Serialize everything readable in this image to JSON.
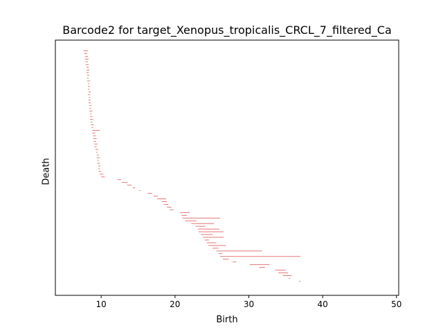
{
  "chart_data": {
    "type": "barcode",
    "title": "Barcode2 for target_Xenopus_tropicalis_CRCL_7_filtered_Ca",
    "xlabel": "Birth",
    "ylabel": "Death",
    "xlim": [
      3.8,
      50.3
    ],
    "xticks": [
      10,
      20,
      30,
      40,
      50
    ],
    "xtick_labels": [
      "10",
      "20",
      "30",
      "40",
      "50"
    ],
    "y_ticks_shown": false,
    "grid": false,
    "bar_color": "#e06666",
    "bars": [
      {
        "start": 7.6,
        "end": 8.2
      },
      {
        "start": 7.7,
        "end": 8.1
      },
      {
        "start": 7.8,
        "end": 8.2
      },
      {
        "start": 7.8,
        "end": 8.3
      },
      {
        "start": 7.9,
        "end": 8.2
      },
      {
        "start": 7.9,
        "end": 8.3
      },
      {
        "start": 8.0,
        "end": 8.3
      },
      {
        "start": 8.0,
        "end": 8.4
      },
      {
        "start": 8.0,
        "end": 8.3
      },
      {
        "start": 8.1,
        "end": 8.4
      },
      {
        "start": 8.1,
        "end": 8.3
      },
      {
        "start": 8.1,
        "end": 8.5
      },
      {
        "start": 8.2,
        "end": 8.4
      },
      {
        "start": 8.2,
        "end": 8.5
      },
      {
        "start": 8.2,
        "end": 8.4
      },
      {
        "start": 8.3,
        "end": 8.6
      },
      {
        "start": 8.2,
        "end": 8.5
      },
      {
        "start": 8.3,
        "end": 8.5
      },
      {
        "start": 8.3,
        "end": 8.6
      },
      {
        "start": 8.3,
        "end": 8.6
      },
      {
        "start": 8.4,
        "end": 8.7
      },
      {
        "start": 8.4,
        "end": 8.6
      },
      {
        "start": 8.4,
        "end": 8.8
      },
      {
        "start": 8.5,
        "end": 8.7
      },
      {
        "start": 8.5,
        "end": 8.8
      },
      {
        "start": 8.5,
        "end": 8.9
      },
      {
        "start": 8.6,
        "end": 8.8
      },
      {
        "start": 8.6,
        "end": 9.0
      },
      {
        "start": 8.7,
        "end": 8.9
      },
      {
        "start": 8.8,
        "end": 9.8
      },
      {
        "start": 8.8,
        "end": 9.2
      },
      {
        "start": 8.9,
        "end": 9.3
      },
      {
        "start": 8.9,
        "end": 9.4
      },
      {
        "start": 9.0,
        "end": 9.3
      },
      {
        "start": 9.1,
        "end": 9.5
      },
      {
        "start": 9.1,
        "end": 9.4
      },
      {
        "start": 9.2,
        "end": 9.6
      },
      {
        "start": 9.3,
        "end": 9.5
      },
      {
        "start": 9.4,
        "end": 9.7
      },
      {
        "start": 9.4,
        "end": 9.8
      },
      {
        "start": 9.5,
        "end": 9.7
      },
      {
        "start": 9.5,
        "end": 9.8
      },
      {
        "start": 9.6,
        "end": 9.9
      },
      {
        "start": 9.6,
        "end": 9.8
      },
      {
        "start": 9.7,
        "end": 10.0
      },
      {
        "start": 9.8,
        "end": 10.3
      },
      {
        "start": 10.0,
        "end": 10.5
      },
      {
        "start": 12.2,
        "end": 12.7
      },
      {
        "start": 12.8,
        "end": 13.6
      },
      {
        "start": 13.5,
        "end": 14.1
      },
      {
        "start": 14.3,
        "end": 14.6
      },
      {
        "start": 15.1,
        "end": 15.3
      },
      {
        "start": 16.3,
        "end": 16.9
      },
      {
        "start": 17.1,
        "end": 17.7
      },
      {
        "start": 17.6,
        "end": 18.8
      },
      {
        "start": 18.2,
        "end": 18.9
      },
      {
        "start": 18.5,
        "end": 19.1
      },
      {
        "start": 18.9,
        "end": 19.5
      },
      {
        "start": 19.3,
        "end": 19.8
      },
      {
        "start": 20.7,
        "end": 22.0
      },
      {
        "start": 20.9,
        "end": 21.6
      },
      {
        "start": 21.0,
        "end": 26.1
      },
      {
        "start": 21.4,
        "end": 22.9
      },
      {
        "start": 22.2,
        "end": 25.3
      },
      {
        "start": 22.8,
        "end": 24.1
      },
      {
        "start": 23.1,
        "end": 26.0
      },
      {
        "start": 23.2,
        "end": 26.6
      },
      {
        "start": 23.5,
        "end": 25.1
      },
      {
        "start": 23.8,
        "end": 26.6
      },
      {
        "start": 24.0,
        "end": 24.6
      },
      {
        "start": 24.3,
        "end": 25.6
      },
      {
        "start": 24.5,
        "end": 26.9
      },
      {
        "start": 25.1,
        "end": 25.9
      },
      {
        "start": 25.6,
        "end": 31.8
      },
      {
        "start": 25.9,
        "end": 26.4
      },
      {
        "start": 26.1,
        "end": 37.0
      },
      {
        "start": 26.5,
        "end": 27.3
      },
      {
        "start": 27.8,
        "end": 28.3
      },
      {
        "start": 30.1,
        "end": 32.8
      },
      {
        "start": 31.4,
        "end": 32.2
      },
      {
        "start": 33.6,
        "end": 35.0
      },
      {
        "start": 34.0,
        "end": 35.3
      },
      {
        "start": 34.6,
        "end": 35.8
      },
      {
        "start": 35.4,
        "end": 35.6
      },
      {
        "start": 36.8,
        "end": 37.0
      }
    ]
  }
}
